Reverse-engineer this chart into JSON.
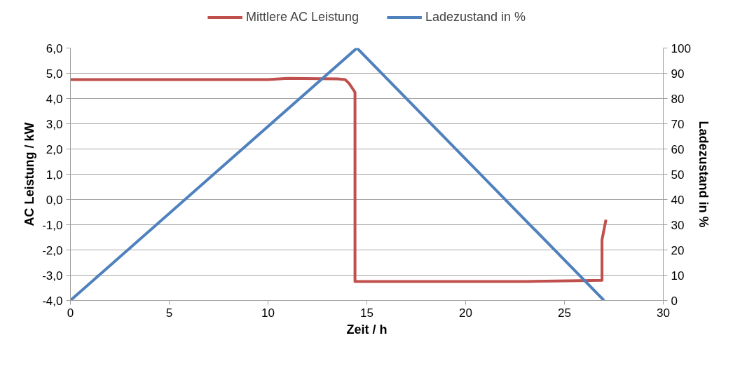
{
  "chart_data": {
    "type": "line",
    "xlabel": "Zeit / h",
    "ylabel": "AC Leistung / kW",
    "y2label": "Ladezustand in %",
    "xlim": [
      0,
      30
    ],
    "xticks": [
      0,
      5,
      10,
      15,
      20,
      25,
      30
    ],
    "ylim": [
      -4,
      6
    ],
    "yticks": [
      {
        "value": -4,
        "label": "-4,0"
      },
      {
        "value": -3,
        "label": "-3,0"
      },
      {
        "value": -2,
        "label": "-2,0"
      },
      {
        "value": -1,
        "label": "-1,0"
      },
      {
        "value": 0,
        "label": "0,0"
      },
      {
        "value": 1,
        "label": "1,0"
      },
      {
        "value": 2,
        "label": "2,0"
      },
      {
        "value": 3,
        "label": "3,0"
      },
      {
        "value": 4,
        "label": "4,0"
      },
      {
        "value": 5,
        "label": "5,0"
      },
      {
        "value": 6,
        "label": "6,0"
      }
    ],
    "y2lim": [
      0,
      100
    ],
    "y2ticks": [
      0,
      10,
      20,
      30,
      40,
      50,
      60,
      70,
      80,
      90,
      100
    ],
    "grid": "y",
    "legend": "top",
    "marker": "none",
    "line_style": "solid",
    "series": [
      {
        "name": "Mittlere AC Leistung",
        "color": "#c0504d",
        "x": [
          0,
          5,
          10,
          11,
          13.5,
          13.9,
          14.1,
          14.4,
          14.4,
          14.5,
          18,
          23,
          26.9,
          26.9,
          27.0,
          27.1
        ],
        "values": [
          4.75,
          4.75,
          4.75,
          4.8,
          4.78,
          4.75,
          4.6,
          4.25,
          -3.25,
          -3.25,
          -3.25,
          -3.25,
          -3.2,
          -1.6,
          -1.2,
          -0.8
        ]
      },
      {
        "name": "Ladezustand in %",
        "color": "#4f81bd",
        "axis": "y2",
        "x": [
          0,
          14.5,
          27.0
        ],
        "values": [
          0,
          100,
          0
        ]
      }
    ]
  }
}
